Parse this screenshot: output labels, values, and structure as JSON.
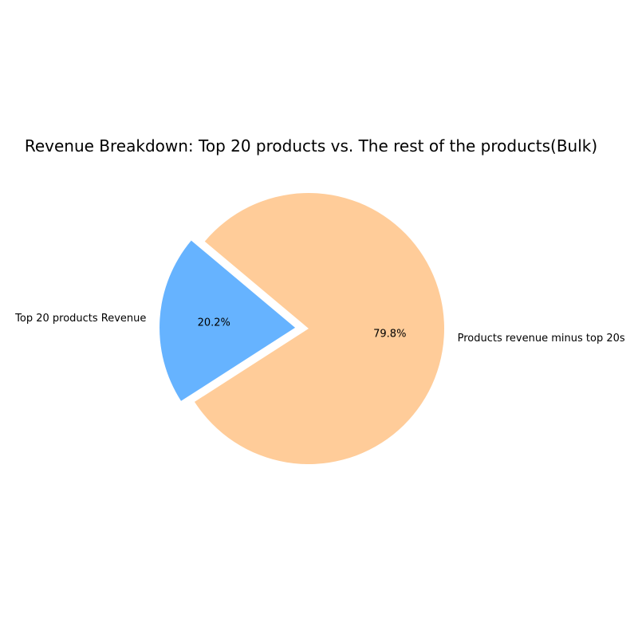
{
  "chart_data": {
    "type": "pie",
    "title": "Revenue Breakdown: Top 20 products vs. The rest of the products(Bulk)",
    "slices": [
      {
        "label": "Top 20 products Revenue",
        "value": 20.2,
        "pct_label": "20.2%",
        "color": "#66b3ff",
        "exploded": true
      },
      {
        "label": "Products revenue minus top 20s",
        "value": 79.8,
        "pct_label": "79.8%",
        "color": "#ffcc99",
        "exploded": false
      }
    ]
  }
}
